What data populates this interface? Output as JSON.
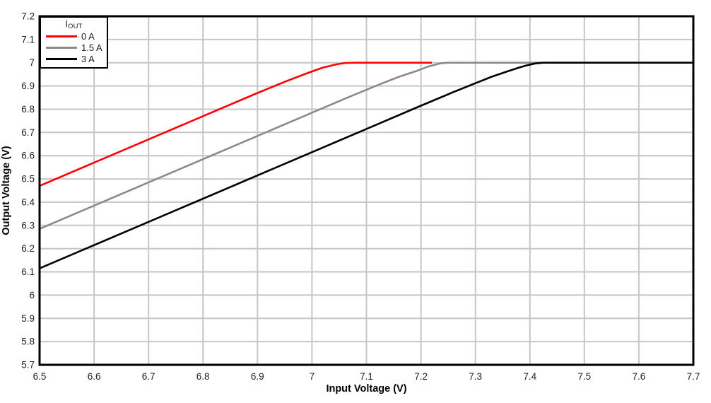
{
  "chart_data": {
    "type": "line",
    "xlabel": "Input Voltage (V)",
    "ylabel": "Output Voltage (V)",
    "xlim": [
      6.5,
      7.7
    ],
    "ylim": [
      5.7,
      7.2
    ],
    "grid": true,
    "legend": {
      "title_main": "I",
      "title_sub": "OUT",
      "position": "top-left"
    },
    "x_ticks": [
      {
        "v": 6.5,
        "label": "6.5"
      },
      {
        "v": 6.6,
        "label": "6.6"
      },
      {
        "v": 6.7,
        "label": "6.7"
      },
      {
        "v": 6.8,
        "label": "6.8"
      },
      {
        "v": 6.9,
        "label": "6.9"
      },
      {
        "v": 7.0,
        "label": "7"
      },
      {
        "v": 7.1,
        "label": "7.1"
      },
      {
        "v": 7.2,
        "label": "7.2"
      },
      {
        "v": 7.3,
        "label": "7.3"
      },
      {
        "v": 7.4,
        "label": "7.4"
      },
      {
        "v": 7.5,
        "label": "7.5"
      },
      {
        "v": 7.6,
        "label": "7.6"
      },
      {
        "v": 7.7,
        "label": "7.7"
      }
    ],
    "y_ticks": [
      {
        "v": 5.7,
        "label": "5.7"
      },
      {
        "v": 5.8,
        "label": "5.8"
      },
      {
        "v": 5.9,
        "label": "5.9"
      },
      {
        "v": 6.0,
        "label": "6"
      },
      {
        "v": 6.1,
        "label": "6.1"
      },
      {
        "v": 6.2,
        "label": "6.2"
      },
      {
        "v": 6.3,
        "label": "6.3"
      },
      {
        "v": 6.4,
        "label": "6.4"
      },
      {
        "v": 6.5,
        "label": "6.5"
      },
      {
        "v": 6.6,
        "label": "6.6"
      },
      {
        "v": 6.7,
        "label": "6.7"
      },
      {
        "v": 6.8,
        "label": "6.8"
      },
      {
        "v": 6.9,
        "label": "6.9"
      },
      {
        "v": 7.0,
        "label": "7"
      },
      {
        "v": 7.1,
        "label": "7.1"
      },
      {
        "v": 7.2,
        "label": "7.2"
      }
    ],
    "series": [
      {
        "name": "0 A",
        "color": "#ff0000",
        "points": [
          [
            6.5,
            6.47
          ],
          [
            6.9,
            6.87
          ],
          [
            6.95,
            6.918
          ],
          [
            6.99,
            6.954
          ],
          [
            7.02,
            6.979
          ],
          [
            7.045,
            6.993
          ],
          [
            7.06,
            6.999
          ],
          [
            7.08,
            7.0
          ],
          [
            7.22,
            7.0
          ]
        ]
      },
      {
        "name": "1.5 A",
        "color": "#8a8a8a",
        "points": [
          [
            6.5,
            6.285
          ],
          [
            7.06,
            6.845
          ],
          [
            7.12,
            6.903
          ],
          [
            7.16,
            6.94
          ],
          [
            7.19,
            6.963
          ],
          [
            7.215,
            6.985
          ],
          [
            7.235,
            6.997
          ],
          [
            7.25,
            7.0
          ],
          [
            7.7,
            7.0
          ]
        ]
      },
      {
        "name": "3 A",
        "color": "#000000",
        "points": [
          [
            6.5,
            6.115
          ],
          [
            7.2,
            6.815
          ],
          [
            7.26,
            6.874
          ],
          [
            7.3,
            6.912
          ],
          [
            7.33,
            6.94
          ],
          [
            7.36,
            6.964
          ],
          [
            7.38,
            6.979
          ],
          [
            7.395,
            6.989
          ],
          [
            7.41,
            6.997
          ],
          [
            7.425,
            7.0
          ],
          [
            7.7,
            7.0
          ]
        ]
      }
    ],
    "colors": {
      "grid": "#c6c6c6",
      "frame": "#000000",
      "tick_text": "#1f1f1f",
      "background": "#ffffff"
    }
  }
}
